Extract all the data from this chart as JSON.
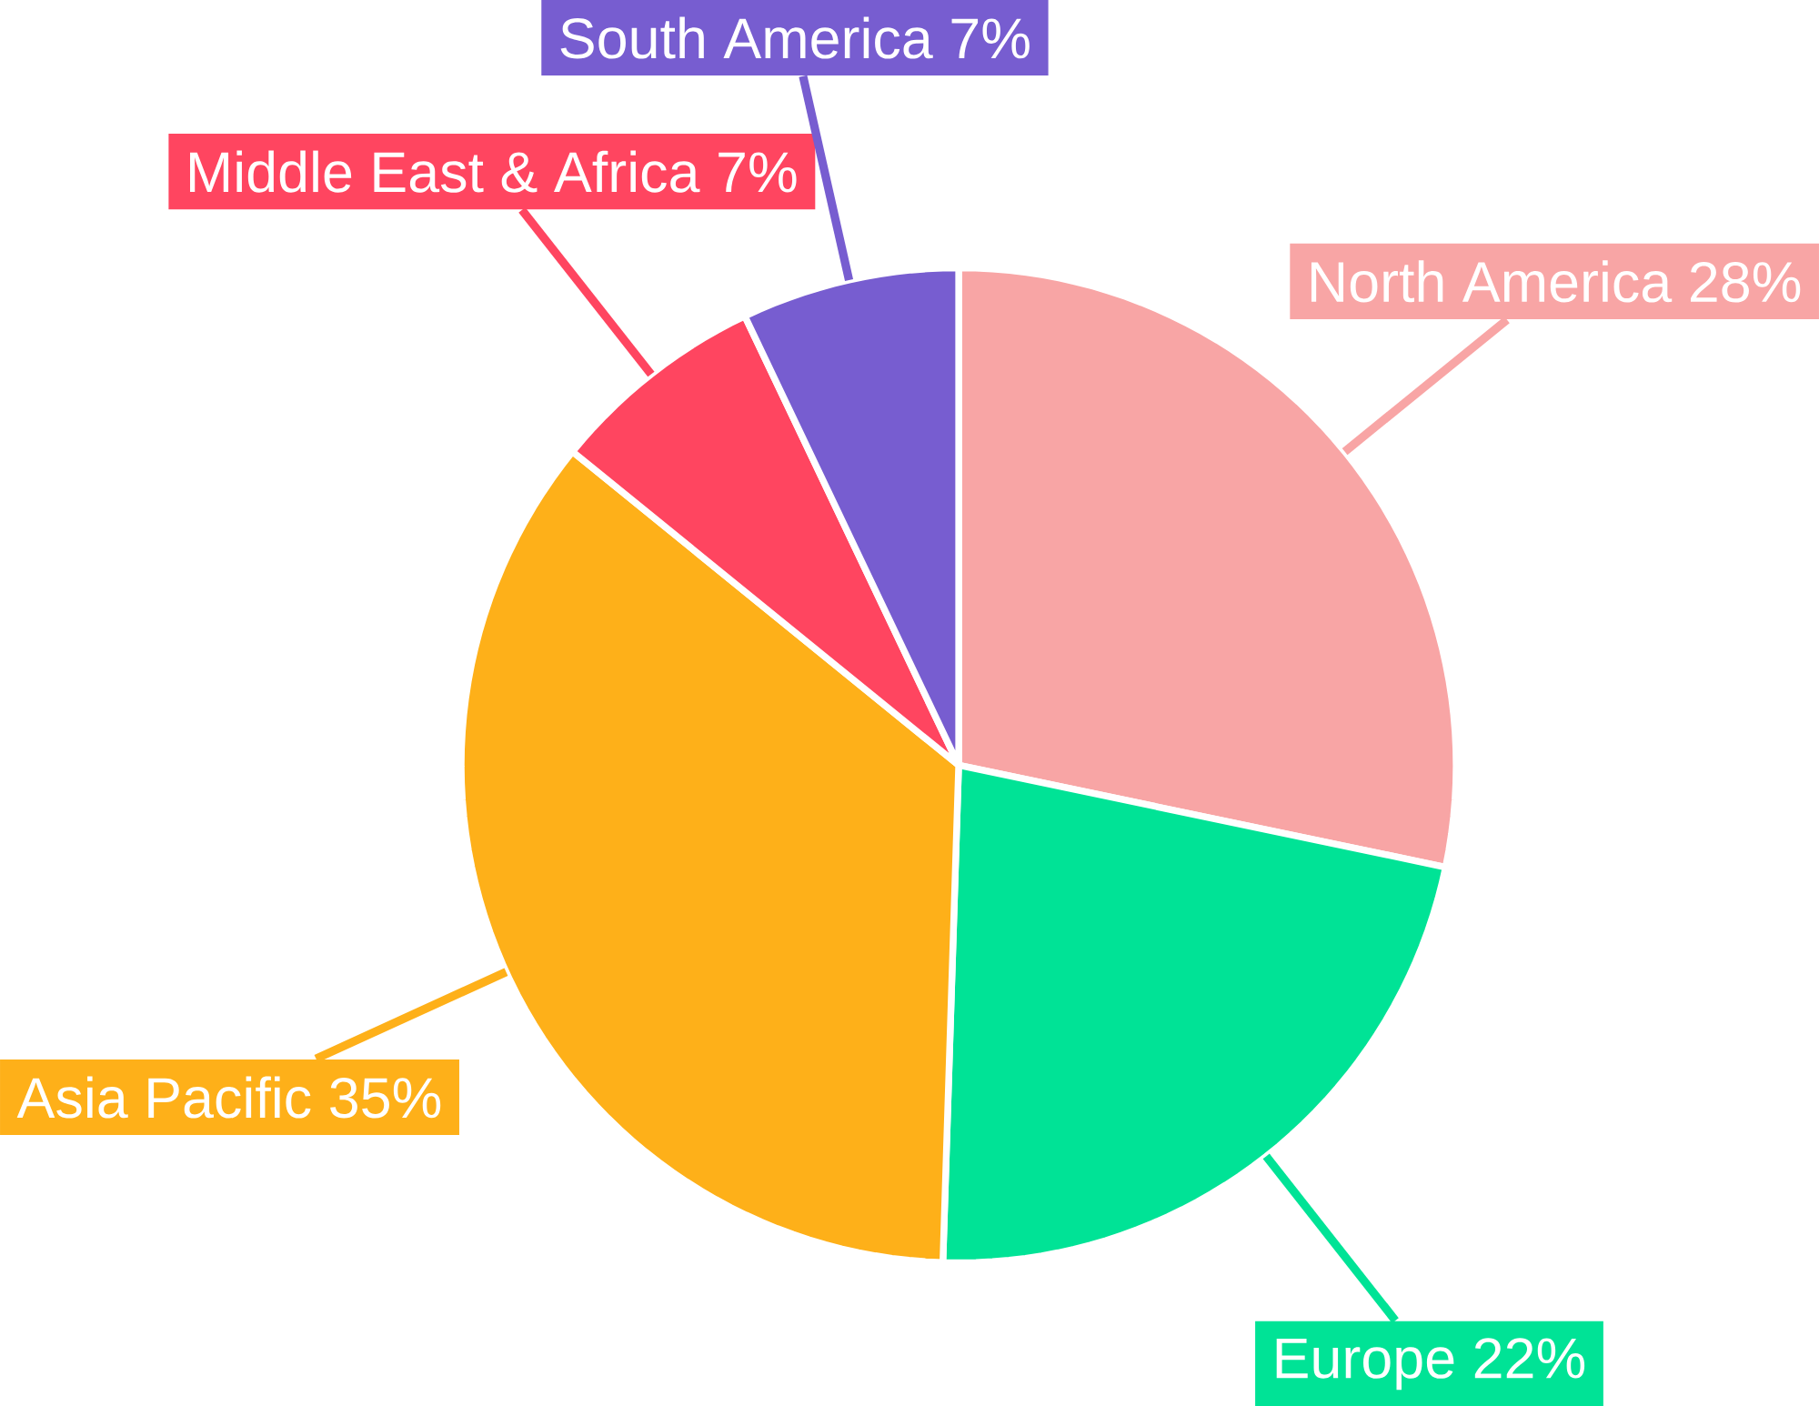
{
  "chart_data": {
    "type": "pie",
    "categories": [
      "North America",
      "Europe",
      "Asia Pacific",
      "Middle East & Africa",
      "South America"
    ],
    "values": [
      28,
      22,
      35,
      7,
      7
    ],
    "value_labels": [
      "28%",
      "22%",
      "35%",
      "7%",
      "7%"
    ],
    "colors": [
      "#f8a5a5",
      "#00e396",
      "#feb019",
      "#ff4560",
      "#775dd0"
    ]
  }
}
